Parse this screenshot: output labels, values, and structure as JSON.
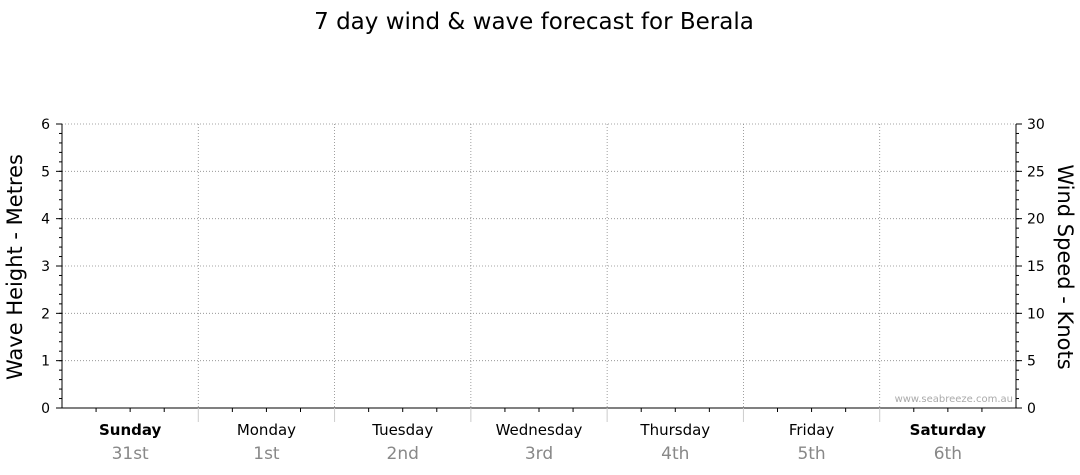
{
  "chart_data": {
    "type": "line",
    "title": "7 day wind & wave forecast for Berala",
    "ylabel_left": "Wave Height - Metres",
    "ylabel_right": "Wind Speed - Knots",
    "ylim_left": [
      0,
      6
    ],
    "ylim_right": [
      0,
      30
    ],
    "yticks_left": [
      0,
      1,
      2,
      3,
      4,
      5,
      6
    ],
    "yticks_right": [
      0,
      5,
      10,
      15,
      20,
      25,
      30
    ],
    "grid": true,
    "days": [
      {
        "name": "Sunday",
        "date": "31st",
        "weekend": true
      },
      {
        "name": "Monday",
        "date": "1st",
        "weekend": false
      },
      {
        "name": "Tuesday",
        "date": "2nd",
        "weekend": false
      },
      {
        "name": "Wednesday",
        "date": "3rd",
        "weekend": false
      },
      {
        "name": "Thursday",
        "date": "4th",
        "weekend": false
      },
      {
        "name": "Friday",
        "date": "5th",
        "weekend": false
      },
      {
        "name": "Saturday",
        "date": "6th",
        "weekend": true
      }
    ],
    "series": [],
    "watermark": "www.seabreeze.com.au"
  },
  "colors": {
    "axis": "#000000",
    "grid": "#888888",
    "date": "#888888",
    "watermark": "#aaaaaa"
  }
}
